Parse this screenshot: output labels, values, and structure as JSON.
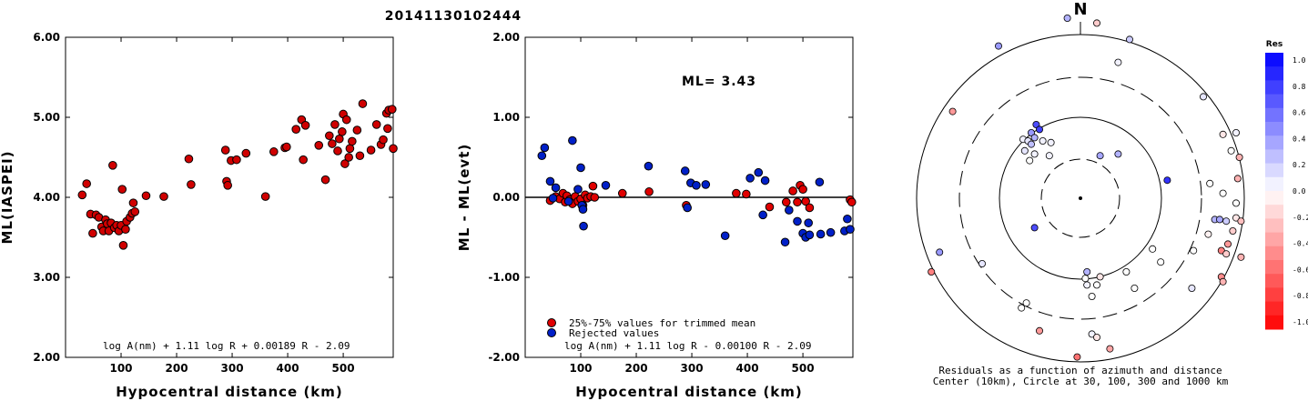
{
  "title": "20141130102444",
  "chart_data": [
    {
      "type": "scatter",
      "ylabel": "ML(IASPEI)",
      "xlabel": "Hypocentral distance (km)",
      "xlim": [
        0,
        590
      ],
      "ylim": [
        2.0,
        6.0
      ],
      "xticks": [
        "100",
        "200",
        "300",
        "400",
        "500"
      ],
      "yticks": [
        "2.00",
        "3.00",
        "4.00",
        "5.00",
        "6.00"
      ],
      "formula": "log A(nm) + 1.11 log R + 0.00189 R - 2.09",
      "points": [
        [
          30,
          4.03
        ],
        [
          38,
          4.17
        ],
        [
          45,
          3.79
        ],
        [
          49,
          3.55
        ],
        [
          55,
          3.78
        ],
        [
          60,
          3.75
        ],
        [
          65,
          3.63
        ],
        [
          68,
          3.58
        ],
        [
          72,
          3.72
        ],
        [
          75,
          3.67
        ],
        [
          78,
          3.58
        ],
        [
          82,
          3.68
        ],
        [
          85,
          4.4
        ],
        [
          88,
          3.62
        ],
        [
          92,
          3.65
        ],
        [
          96,
          3.58
        ],
        [
          100,
          3.65
        ],
        [
          102,
          4.1
        ],
        [
          104,
          3.4
        ],
        [
          108,
          3.6
        ],
        [
          110,
          3.7
        ],
        [
          116,
          3.75
        ],
        [
          120,
          3.8
        ],
        [
          122,
          3.93
        ],
        [
          125,
          3.82
        ],
        [
          145,
          4.02
        ],
        [
          177,
          4.01
        ],
        [
          222,
          4.48
        ],
        [
          226,
          4.16
        ],
        [
          288,
          4.59
        ],
        [
          290,
          4.2
        ],
        [
          292,
          4.15
        ],
        [
          298,
          4.46
        ],
        [
          308,
          4.47
        ],
        [
          325,
          4.55
        ],
        [
          360,
          4.01
        ],
        [
          375,
          4.57
        ],
        [
          395,
          4.62
        ],
        [
          398,
          4.63
        ],
        [
          415,
          4.85
        ],
        [
          425,
          4.97
        ],
        [
          428,
          4.47
        ],
        [
          432,
          4.9
        ],
        [
          456,
          4.65
        ],
        [
          468,
          4.22
        ],
        [
          475,
          4.77
        ],
        [
          480,
          4.67
        ],
        [
          485,
          4.91
        ],
        [
          490,
          4.58
        ],
        [
          493,
          4.73
        ],
        [
          498,
          4.82
        ],
        [
          500,
          5.04
        ],
        [
          503,
          4.42
        ],
        [
          506,
          4.97
        ],
        [
          510,
          4.5
        ],
        [
          512,
          4.61
        ],
        [
          516,
          4.7
        ],
        [
          525,
          4.84
        ],
        [
          530,
          4.52
        ],
        [
          535,
          5.17
        ],
        [
          550,
          4.59
        ],
        [
          560,
          4.91
        ],
        [
          568,
          4.66
        ],
        [
          572,
          4.72
        ],
        [
          578,
          5.05
        ],
        [
          580,
          4.86
        ],
        [
          582,
          5.09
        ],
        [
          588,
          5.1
        ],
        [
          590,
          4.61
        ]
      ]
    },
    {
      "type": "scatter",
      "ylabel": "ML - ML(evt)",
      "xlabel": "Hypocentral distance (km)",
      "xlim": [
        0,
        590
      ],
      "ylim": [
        -2.0,
        2.0
      ],
      "xticks": [
        "100",
        "200",
        "300",
        "400",
        "500"
      ],
      "yticks": [
        "-2.00",
        "-1.00",
        "0.00",
        "1.00",
        "2.00"
      ],
      "annotation": "ML= 3.43",
      "formula": "log A(nm) + 1.11 log R - 0.00100 R - 2.09",
      "legend": [
        "25%-75% values for trimmed mean",
        "Rejected values"
      ],
      "series": [
        {
          "name": "25%-75% values for trimmed mean",
          "color": "#e00000",
          "points": [
            [
              45,
              -0.04
            ],
            [
              55,
              0.01
            ],
            [
              62,
              -0.02
            ],
            [
              68,
              0.05
            ],
            [
              72,
              -0.06
            ],
            [
              75,
              0.02
            ],
            [
              80,
              -0.03
            ],
            [
              85,
              -0.08
            ],
            [
              90,
              0.01
            ],
            [
              95,
              -0.05
            ],
            [
              100,
              -0.02
            ],
            [
              104,
              -0.1
            ],
            [
              108,
              0.03
            ],
            [
              112,
              -0.01
            ],
            [
              118,
              0.01
            ],
            [
              122,
              0.14
            ],
            [
              125,
              0.0
            ],
            [
              175,
              0.05
            ],
            [
              223,
              0.07
            ],
            [
              290,
              -0.1
            ],
            [
              380,
              0.05
            ],
            [
              398,
              0.04
            ],
            [
              440,
              -0.12
            ],
            [
              470,
              -0.06
            ],
            [
              482,
              0.08
            ],
            [
              490,
              -0.06
            ],
            [
              495,
              0.15
            ],
            [
              500,
              0.1
            ],
            [
              505,
              -0.05
            ],
            [
              512,
              -0.13
            ],
            [
              585,
              -0.03
            ],
            [
              588,
              -0.06
            ]
          ]
        },
        {
          "name": "Rejected values",
          "color": "#0020c8",
          "points": [
            [
              30,
              0.52
            ],
            [
              35,
              0.62
            ],
            [
              45,
              0.2
            ],
            [
              50,
              -0.01
            ],
            [
              55,
              0.12
            ],
            [
              78,
              -0.05
            ],
            [
              85,
              0.71
            ],
            [
              95,
              0.1
            ],
            [
              100,
              0.37
            ],
            [
              102,
              -0.1
            ],
            [
              104,
              -0.15
            ],
            [
              105,
              -0.36
            ],
            [
              145,
              0.15
            ],
            [
              222,
              0.39
            ],
            [
              288,
              0.33
            ],
            [
              292,
              -0.13
            ],
            [
              298,
              0.18
            ],
            [
              308,
              0.15
            ],
            [
              325,
              0.16
            ],
            [
              360,
              -0.48
            ],
            [
              405,
              0.24
            ],
            [
              420,
              0.31
            ],
            [
              428,
              -0.22
            ],
            [
              432,
              0.21
            ],
            [
              468,
              -0.56
            ],
            [
              475,
              -0.16
            ],
            [
              490,
              -0.3
            ],
            [
              500,
              -0.45
            ],
            [
              505,
              -0.5
            ],
            [
              510,
              -0.32
            ],
            [
              512,
              -0.47
            ],
            [
              530,
              0.19
            ],
            [
              532,
              -0.46
            ],
            [
              550,
              -0.44
            ],
            [
              575,
              -0.42
            ],
            [
              580,
              -0.27
            ],
            [
              585,
              -0.4
            ]
          ]
        }
      ]
    },
    {
      "type": "scatter",
      "subtype": "polar",
      "north_label": "N",
      "caption_line1": "Residuals as a function of azimuth and distance",
      "caption_line2": "Center (10km), Circle at 30, 100, 300 and 1000 km",
      "colorbar_title": "Res",
      "colorbar_ticks": [
        "1.0",
        "0.8",
        "0.6",
        "0.4",
        "0.2",
        "0.0",
        "-0.2",
        "-0.4",
        "-0.6",
        "-0.8",
        "-1.0"
      ],
      "points": [
        [
          -0.08,
          -1.1,
          0.3
        ],
        [
          0.1,
          -1.07,
          -0.2
        ],
        [
          0.3,
          -0.97,
          0.2
        ],
        [
          0.23,
          -0.83,
          0.05
        ],
        [
          -0.5,
          -0.93,
          0.4
        ],
        [
          0.75,
          -0.62,
          0.1
        ],
        [
          -0.78,
          -0.53,
          -0.4
        ],
        [
          -0.27,
          -0.45,
          0.7
        ],
        [
          -0.25,
          -0.42,
          0.75
        ],
        [
          -0.3,
          -0.4,
          0.4
        ],
        [
          -0.28,
          -0.37,
          0.3
        ],
        [
          -0.35,
          -0.36,
          0.05
        ],
        [
          -0.32,
          -0.35,
          0.1
        ],
        [
          -0.3,
          -0.33,
          0.25
        ],
        [
          -0.23,
          -0.35,
          0.05
        ],
        [
          -0.18,
          -0.34,
          0.05
        ],
        [
          -0.34,
          -0.29,
          0.1
        ],
        [
          -0.28,
          -0.27,
          0.05
        ],
        [
          -0.31,
          -0.23,
          0.0
        ],
        [
          -0.19,
          -0.26,
          0.05
        ],
        [
          0.12,
          -0.26,
          0.35
        ],
        [
          0.23,
          -0.27,
          0.3
        ],
        [
          0.53,
          -0.11,
          0.8
        ],
        [
          0.87,
          -0.39,
          -0.1
        ],
        [
          0.92,
          -0.29,
          0.0
        ],
        [
          0.97,
          -0.25,
          -0.3
        ],
        [
          0.95,
          -0.4,
          0.05
        ],
        [
          0.96,
          -0.12,
          -0.3
        ],
        [
          0.87,
          -0.03,
          0.0
        ],
        [
          0.79,
          -0.09,
          0.0
        ],
        [
          0.82,
          0.13,
          0.3
        ],
        [
          0.85,
          0.13,
          0.35
        ],
        [
          0.89,
          0.14,
          0.2
        ],
        [
          0.95,
          0.12,
          -0.1
        ],
        [
          0.95,
          0.03,
          0.0
        ],
        [
          0.98,
          0.14,
          -0.25
        ],
        [
          0.93,
          0.2,
          -0.2
        ],
        [
          0.9,
          0.28,
          -0.4
        ],
        [
          0.86,
          0.32,
          -0.5
        ],
        [
          0.89,
          0.34,
          -0.2
        ],
        [
          0.98,
          0.36,
          -0.3
        ],
        [
          0.78,
          0.22,
          -0.05
        ],
        [
          0.69,
          0.32,
          0.0
        ],
        [
          0.44,
          0.31,
          0.0
        ],
        [
          0.49,
          0.39,
          0.0
        ],
        [
          0.86,
          0.48,
          -0.45
        ],
        [
          0.87,
          0.51,
          -0.3
        ],
        [
          0.68,
          0.55,
          0.1
        ],
        [
          0.28,
          0.45,
          0.0
        ],
        [
          0.12,
          0.48,
          -0.1
        ],
        [
          0.04,
          0.45,
          0.3
        ],
        [
          0.04,
          0.53,
          0.05
        ],
        [
          0.1,
          0.53,
          0.0
        ],
        [
          0.03,
          0.49,
          0.0
        ],
        [
          0.07,
          0.6,
          0.0
        ],
        [
          0.33,
          0.55,
          0.0
        ],
        [
          -0.28,
          0.18,
          0.7
        ],
        [
          -0.6,
          0.4,
          0.1
        ],
        [
          -0.86,
          0.33,
          0.4
        ],
        [
          -0.91,
          0.45,
          -0.5
        ],
        [
          -0.33,
          0.64,
          0.0
        ],
        [
          -0.36,
          0.67,
          0.0
        ],
        [
          0.07,
          0.83,
          0.05
        ],
        [
          0.1,
          0.85,
          -0.1
        ],
        [
          -0.25,
          0.81,
          -0.4
        ],
        [
          0.18,
          0.92,
          -0.35
        ],
        [
          -0.02,
          0.97,
          -0.55
        ]
      ]
    }
  ]
}
